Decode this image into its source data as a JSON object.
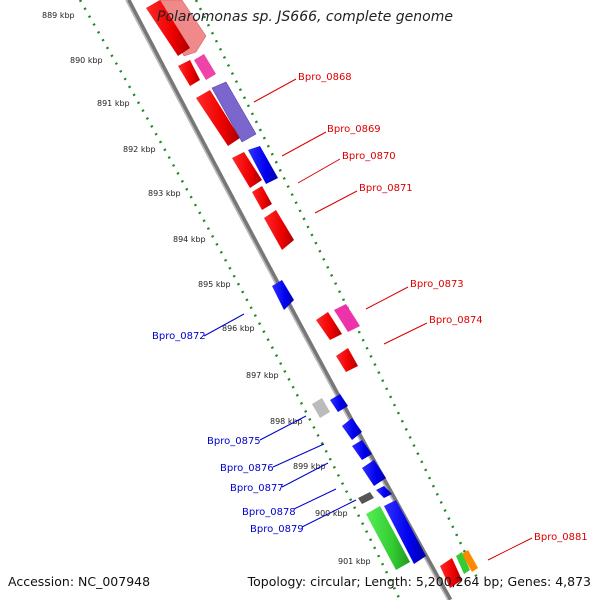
{
  "title": "Polaromonas sp. JS666, complete genome",
  "footer": {
    "accession": "Accession: NC_007948",
    "topology": "Topology: circular; Length: 5,200,264 bp; Genes: 4,873"
  },
  "ruler_labels": [
    "889 kbp",
    "890 kbp",
    "891 kbp",
    "892 kbp",
    "893 kbp",
    "894 kbp",
    "895 kbp",
    "896 kbp",
    "897 kbp",
    "898 kbp",
    "899 kbp",
    "900 kbp",
    "901 kbp"
  ],
  "gene_labels_forward": [
    "Bpro_0868",
    "Bpro_0869",
    "Bpro_0870",
    "Bpro_0871",
    "Bpro_0873",
    "Bpro_0874",
    "Bpro_0881"
  ],
  "gene_labels_reverse": [
    "Bpro_0872",
    "Bpro_0875",
    "Bpro_0876",
    "Bpro_0877",
    "Bpro_0878",
    "Bpro_0879"
  ],
  "colors": {
    "forward_label": "#dd0000",
    "reverse_label": "#0000cc",
    "ruler_dots": "#228822",
    "backbone": "#888888"
  }
}
